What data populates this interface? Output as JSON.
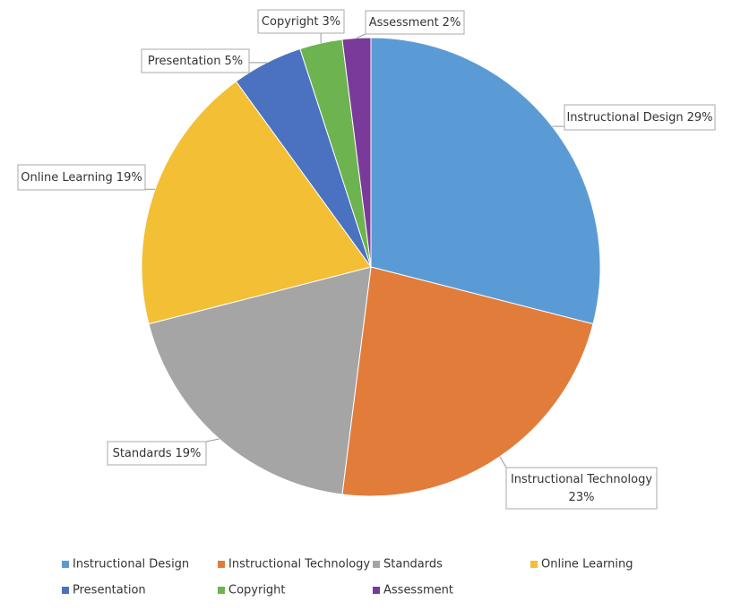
{
  "chart_data": {
    "type": "pie",
    "categories": [
      "Instructional Design",
      "Instructional Technology",
      "Standards",
      "Online Learning",
      "Presentation",
      "Copyright",
      "Assessment"
    ],
    "values": [
      29,
      23,
      19,
      19,
      5,
      3,
      2
    ],
    "value_labels": [
      "29%",
      "23%",
      "19%",
      "19%",
      "5%",
      "3%",
      "2%"
    ],
    "colors": [
      "#5b9bd5",
      "#e27c3a",
      "#a5a5a5",
      "#f2bf35",
      "#4a72c0",
      "#6db350",
      "#7a3a9a"
    ],
    "legend": "bottom"
  }
}
